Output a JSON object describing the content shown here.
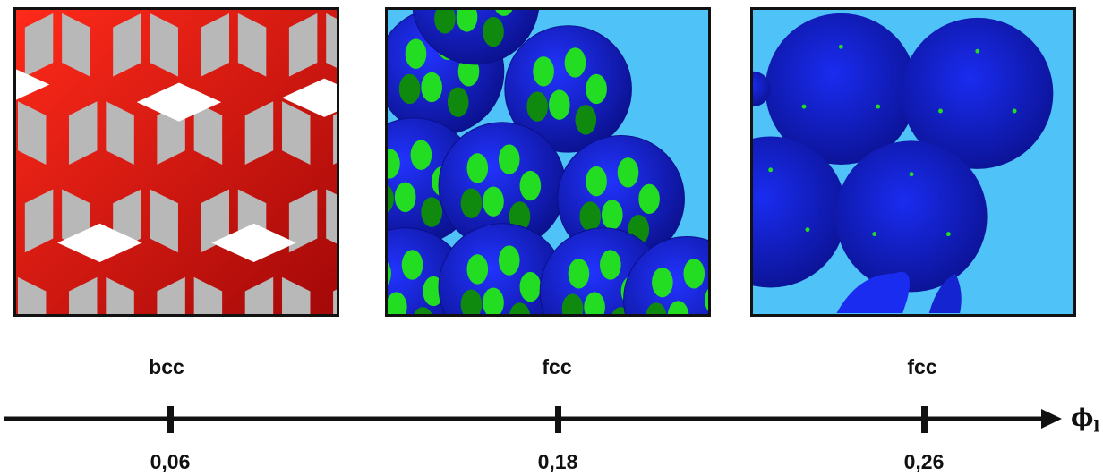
{
  "panels": [
    {
      "label": "bcc",
      "tick": "0,06",
      "frame_colors": {
        "network": "#d40f0f",
        "holes": "#b8b8b8",
        "windows": "#ffffff"
      }
    },
    {
      "label": "fcc",
      "tick": "0,18",
      "frame_colors": {
        "particles": "#1420d6",
        "patches": "#22dd22",
        "background": "#4fc3f7"
      }
    },
    {
      "label": "fcc",
      "tick": "0,26",
      "frame_colors": {
        "particles": "#1420d6",
        "patches": "#22dd22",
        "background": "#4fc3f7"
      }
    }
  ],
  "axis": {
    "variable": "ϕ",
    "subscript": "l",
    "arrow": "right"
  }
}
